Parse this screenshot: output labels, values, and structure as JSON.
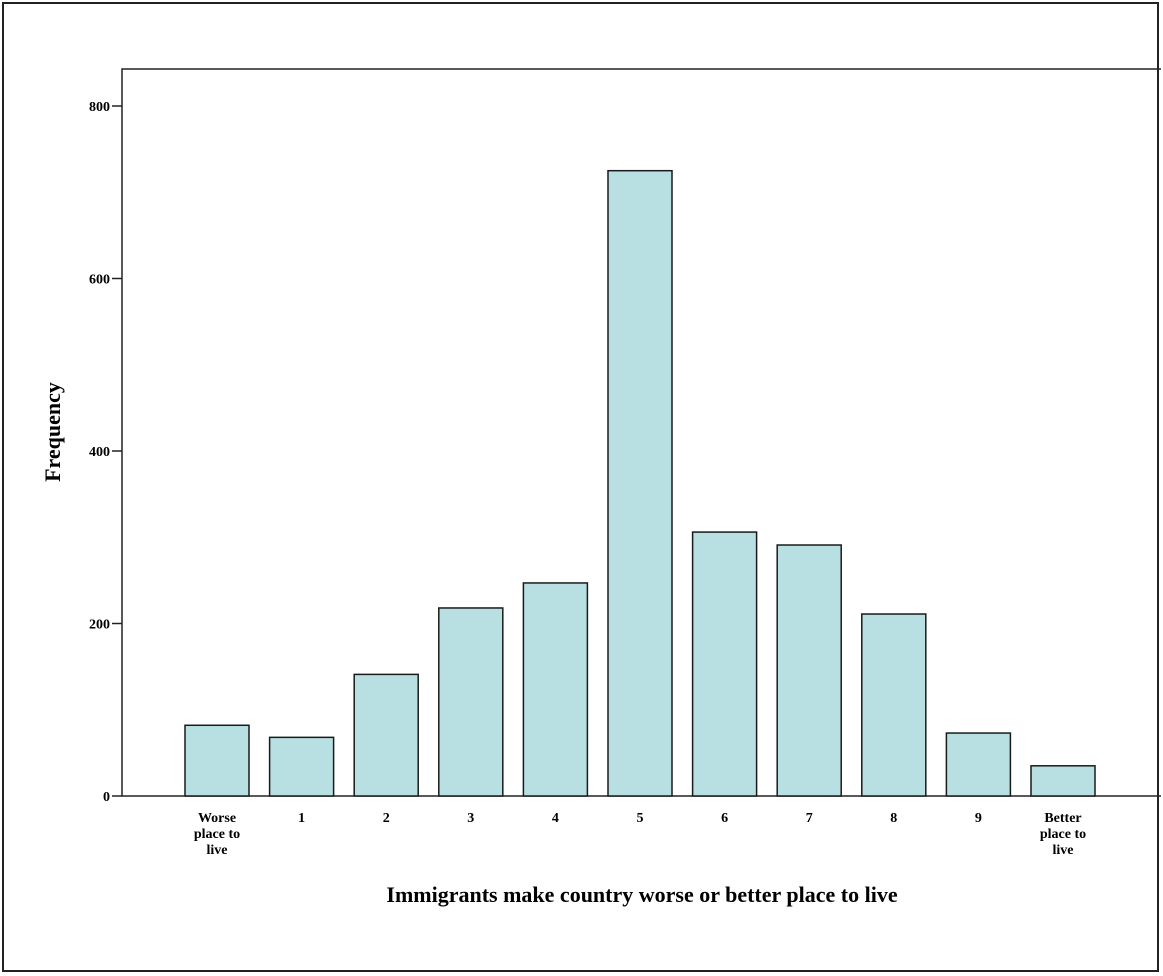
{
  "chart_data": {
    "type": "bar",
    "categories": [
      [
        "Worse",
        "place to",
        "live"
      ],
      [
        "1"
      ],
      [
        "2"
      ],
      [
        "3"
      ],
      [
        "4"
      ],
      [
        "5"
      ],
      [
        "6"
      ],
      [
        "7"
      ],
      [
        "8"
      ],
      [
        "9"
      ],
      [
        "Better",
        "place to",
        "live"
      ]
    ],
    "values": [
      82,
      68,
      141,
      218,
      247,
      725,
      306,
      291,
      211,
      73,
      35
    ],
    "xlabel": "Immigrants make country worse or better place to live",
    "ylabel": "Frequency",
    "ylim": [
      0,
      800
    ],
    "yticks": [
      0,
      200,
      400,
      600,
      800
    ],
    "grid": false,
    "bar_color": "#b8e0e3",
    "bar_edge_color": "#1a1a1a"
  }
}
